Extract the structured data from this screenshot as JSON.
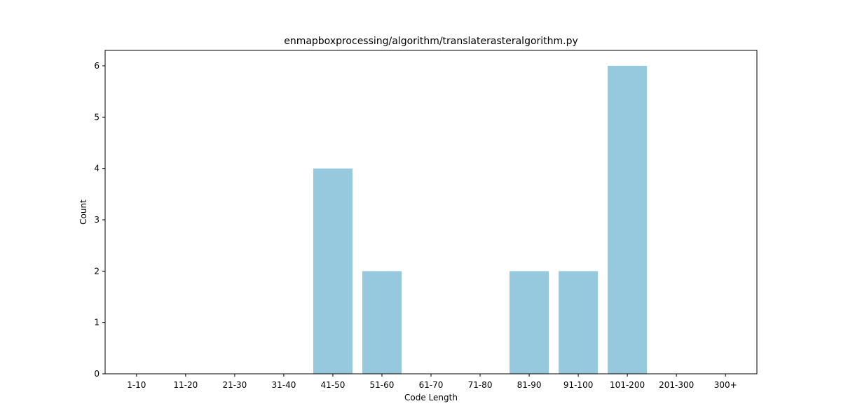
{
  "chart_data": {
    "type": "bar",
    "title": "enmapboxprocessing/algorithm/translaterasteralgorithm.py",
    "xlabel": "Code Length",
    "ylabel": "Count",
    "categories": [
      "1-10",
      "11-20",
      "21-30",
      "31-40",
      "41-50",
      "51-60",
      "61-70",
      "71-80",
      "81-90",
      "91-100",
      "101-200",
      "201-300",
      "300+"
    ],
    "values": [
      0,
      0,
      0,
      0,
      4,
      2,
      0,
      0,
      2,
      2,
      6,
      0,
      0
    ],
    "ylim": [
      0,
      6.3
    ],
    "yticks": [
      0,
      1,
      2,
      3,
      4,
      5,
      6
    ],
    "bar_color": "#96c9dd",
    "grid": false,
    "legend": "none"
  }
}
